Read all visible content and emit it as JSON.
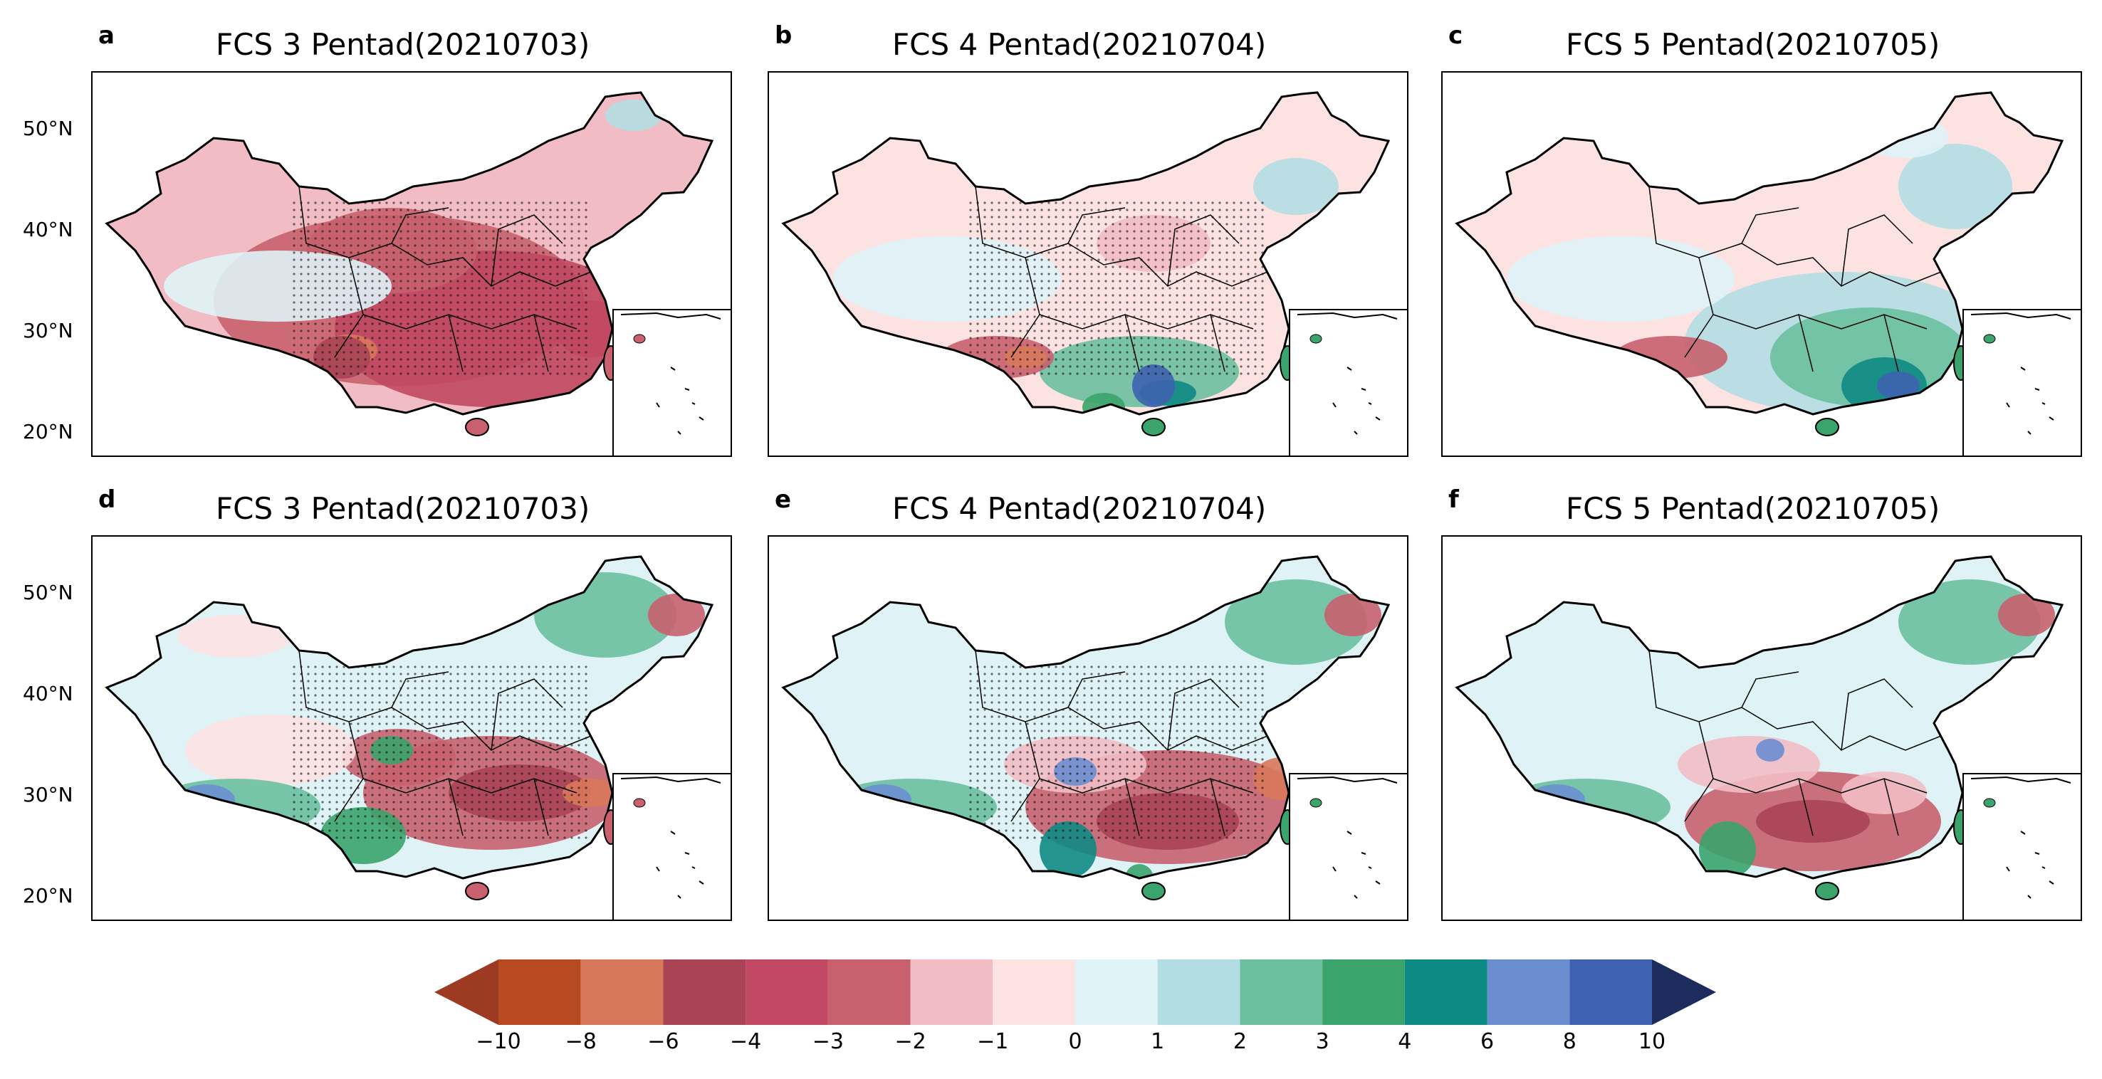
{
  "figure": {
    "panels": [
      {
        "letter": "a",
        "title": "FCS 3 Pentad(20210703)"
      },
      {
        "letter": "b",
        "title": "FCS 4 Pentad(20210704)"
      },
      {
        "letter": "c",
        "title": "FCS 5 Pentad(20210705)"
      },
      {
        "letter": "d",
        "title": "FCS 3 Pentad(20210703)"
      },
      {
        "letter": "e",
        "title": "FCS 4 Pentad(20210704)"
      },
      {
        "letter": "f",
        "title": "FCS 5 Pentad(20210705)"
      }
    ],
    "lat_labels": [
      "50°N",
      "40°N",
      "30°N",
      "20°N"
    ]
  },
  "chart_data": {
    "type": "heatmap",
    "description_type": "filled contour maps of China with stippling",
    "panels": [
      {
        "id": "a",
        "title": "FCS 3 Pentad(20210703)",
        "dominant": "negative (-2 to -4) over southern & central China",
        "stippled": true
      },
      {
        "id": "b",
        "title": "FCS 4 Pentad(20210704)",
        "dominant": "weak negative north, positive south coast",
        "stippled": true
      },
      {
        "id": "c",
        "title": "FCS 5 Pentad(20210705)",
        "dominant": "positive (1 to 8) over southeast China",
        "stippled": false
      },
      {
        "id": "d",
        "title": "FCS 3 Pentad(20210703)",
        "dominant": "negative over middle/lower Yangtze, positive northeast & Tibet",
        "stippled": true
      },
      {
        "id": "e",
        "title": "FCS 4 Pentad(20210704)",
        "dominant": "negative south-central, positive Tibet & northeast",
        "stippled": true
      },
      {
        "id": "f",
        "title": "FCS 5 Pentad(20210705)",
        "dominant": "negative south, positive southwest Tibet",
        "stippled": false
      }
    ],
    "ylabel_ticks": [
      "50°N",
      "40°N",
      "30°N",
      "20°N"
    ],
    "ylim": [
      17,
      55
    ],
    "colorbar": {
      "levels": [
        -10,
        -8,
        -6,
        -4,
        -3,
        -2,
        -1,
        0,
        1,
        2,
        3,
        4,
        6,
        8,
        10
      ],
      "tick_labels": [
        "−10",
        "−8",
        "−6",
        "−4",
        "−3",
        "−2",
        "−1",
        "0",
        "1",
        "2",
        "3",
        "4",
        "6",
        "8",
        "10"
      ],
      "colors": [
        "#9c3b22",
        "#b84a22",
        "#d8785a",
        "#a84456",
        "#c04862",
        "#c8606e",
        "#f2bcc4",
        "#fde2e2",
        "#dff3f7",
        "#b2dee3",
        "#6cc0a0",
        "#3aa46c",
        "#0e8a84",
        "#6a8ed0",
        "#3e62b0",
        "#1c2c5c"
      ],
      "extend": "both"
    }
  }
}
